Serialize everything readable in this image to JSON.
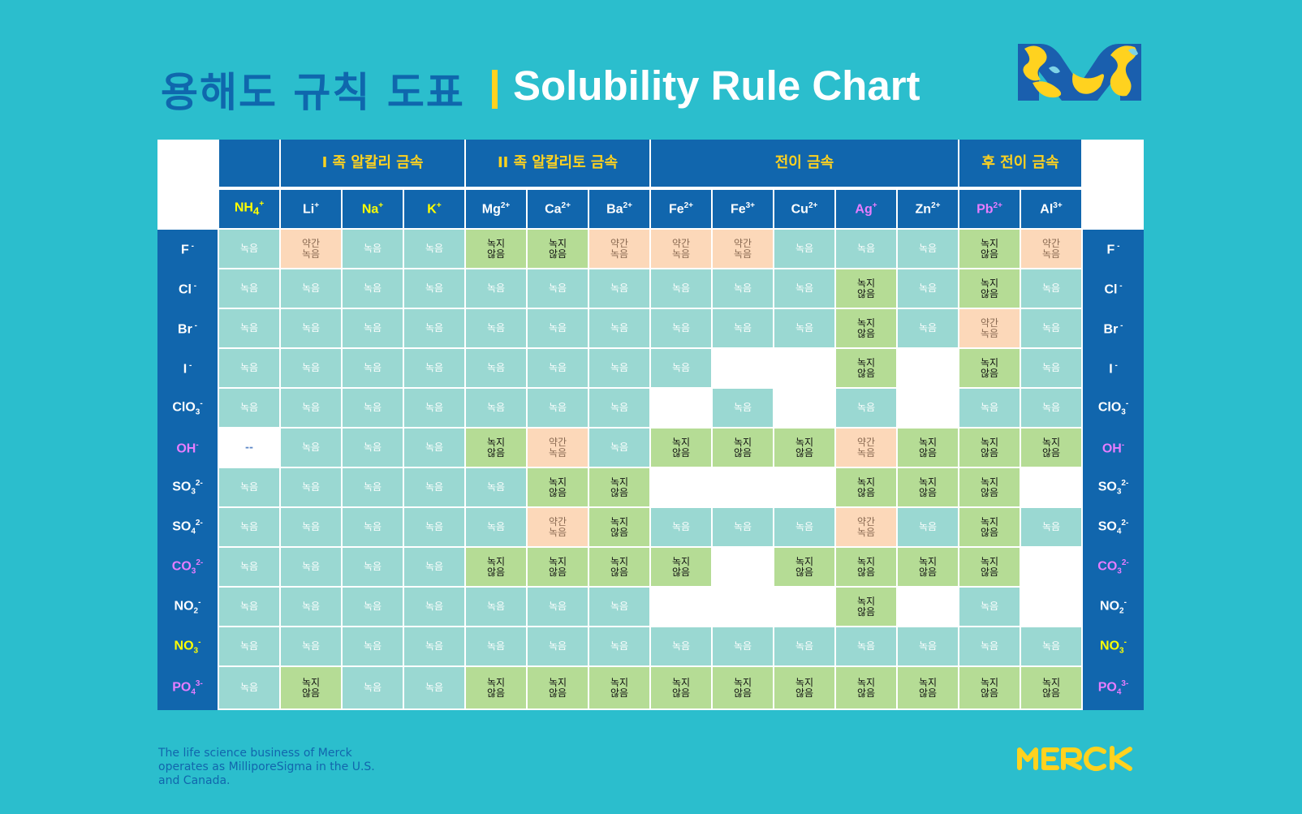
{
  "header": {
    "title_ko": "용해도 규칙 도표",
    "title_en": "Solubility Rule Chart"
  },
  "footer": {
    "note": "The life science business of Merck operates as MilliporeSigma in the U.S. and Canada."
  },
  "colors": {
    "background": "#2bbecd",
    "header_blue": "#1166ad",
    "accent_yellow": "#ffd21f",
    "soluble": "#9ad8d2",
    "insoluble": "#b5dc95",
    "slightly_soluble": "#fcd8b9",
    "magenta_label": "#e77dff"
  },
  "chart_data": {
    "type": "table",
    "title": "Solubility Rule Chart",
    "legend_values": {
      "s": "녹음",
      "n": "녹지\n않음",
      "p": "약간\n녹음",
      "x": "--"
    },
    "groups": [
      {
        "label": "",
        "span": 1
      },
      {
        "label": "I 족 알칼리 금속",
        "span": 3
      },
      {
        "label": "II 족 알칼리토 금속",
        "span": 3
      },
      {
        "label": "전이 금속",
        "span": 5
      },
      {
        "label": "후 전이 금속",
        "span": 2
      }
    ],
    "cations": [
      {
        "base": "NH",
        "sub": "4",
        "sup": "+",
        "color": "y"
      },
      {
        "base": "Li",
        "sub": "",
        "sup": "+",
        "color": "w"
      },
      {
        "base": "Na",
        "sub": "",
        "sup": "+",
        "color": "y"
      },
      {
        "base": "K",
        "sub": "",
        "sup": "+",
        "color": "y"
      },
      {
        "base": "Mg",
        "sub": "",
        "sup": "2+",
        "color": "w"
      },
      {
        "base": "Ca",
        "sub": "",
        "sup": "2+",
        "color": "w"
      },
      {
        "base": "Ba",
        "sub": "",
        "sup": "2+",
        "color": "w"
      },
      {
        "base": "Fe",
        "sub": "",
        "sup": "2+",
        "color": "w"
      },
      {
        "base": "Fe",
        "sub": "",
        "sup": "3+",
        "color": "w"
      },
      {
        "base": "Cu",
        "sub": "",
        "sup": "2+",
        "color": "w"
      },
      {
        "base": "Ag",
        "sub": "",
        "sup": "+",
        "color": "m"
      },
      {
        "base": "Zn",
        "sub": "",
        "sup": "2+",
        "color": "w"
      },
      {
        "base": "Pb",
        "sub": "",
        "sup": "2+",
        "color": "m"
      },
      {
        "base": "Al",
        "sub": "",
        "sup": "3+",
        "color": "w"
      }
    ],
    "anions": [
      {
        "base": "F",
        "sub": "",
        "sup": " -",
        "color": "w"
      },
      {
        "base": "Cl",
        "sub": "",
        "sup": " -",
        "color": "w"
      },
      {
        "base": "Br",
        "sub": "",
        "sup": " -",
        "color": "w"
      },
      {
        "base": "I",
        "sub": "",
        "sup": " -",
        "color": "w"
      },
      {
        "base": "ClO",
        "sub": "3",
        "sup": "-",
        "color": "w"
      },
      {
        "base": "OH",
        "sub": "",
        "sup": "-",
        "color": "m"
      },
      {
        "base": "SO",
        "sub": "3",
        "sup": "2-",
        "color": "w"
      },
      {
        "base": "SO",
        "sub": "4",
        "sup": "2-",
        "color": "w"
      },
      {
        "base": "CO",
        "sub": "3",
        "sup": "2-",
        "color": "m"
      },
      {
        "base": "NO",
        "sub": "2",
        "sup": "-",
        "color": "w"
      },
      {
        "base": "NO",
        "sub": "3",
        "sup": "-",
        "color": "y"
      },
      {
        "base": "PO",
        "sub": "4",
        "sup": "3-",
        "color": "m"
      }
    ],
    "cells": [
      [
        "s",
        "p",
        "s",
        "s",
        "n",
        "n",
        "p",
        "p",
        "p",
        "s",
        "s",
        "s",
        "n",
        "p"
      ],
      [
        "s",
        "s",
        "s",
        "s",
        "s",
        "s",
        "s",
        "s",
        "s",
        "s",
        "n",
        "s",
        "n",
        "s"
      ],
      [
        "s",
        "s",
        "s",
        "s",
        "s",
        "s",
        "s",
        "s",
        "s",
        "s",
        "n",
        "s",
        "p",
        "s"
      ],
      [
        "s",
        "s",
        "s",
        "s",
        "s",
        "s",
        "s",
        "s",
        "",
        "",
        "n",
        "",
        "n",
        "s"
      ],
      [
        "s",
        "s",
        "s",
        "s",
        "s",
        "s",
        "s",
        "",
        "s",
        "",
        "s",
        "",
        "s",
        "s"
      ],
      [
        "x",
        "s",
        "s",
        "s",
        "n",
        "p",
        "s",
        "n",
        "n",
        "n",
        "p",
        "n",
        "n",
        "n"
      ],
      [
        "s",
        "s",
        "s",
        "s",
        "s",
        "n",
        "n",
        "",
        "",
        "",
        "n",
        "n",
        "n",
        ""
      ],
      [
        "s",
        "s",
        "s",
        "s",
        "s",
        "p",
        "n",
        "s",
        "s",
        "s",
        "p",
        "s",
        "n",
        "s"
      ],
      [
        "s",
        "s",
        "s",
        "s",
        "n",
        "n",
        "n",
        "n",
        "",
        "n",
        "n",
        "n",
        "n",
        ""
      ],
      [
        "s",
        "s",
        "s",
        "s",
        "s",
        "s",
        "s",
        "",
        "",
        "",
        "n",
        "",
        "s",
        ""
      ],
      [
        "s",
        "s",
        "s",
        "s",
        "s",
        "s",
        "s",
        "s",
        "s",
        "s",
        "s",
        "s",
        "s",
        "s"
      ],
      [
        "s",
        "n",
        "s",
        "s",
        "n",
        "n",
        "n",
        "n",
        "n",
        "n",
        "n",
        "n",
        "n",
        "n"
      ]
    ]
  }
}
